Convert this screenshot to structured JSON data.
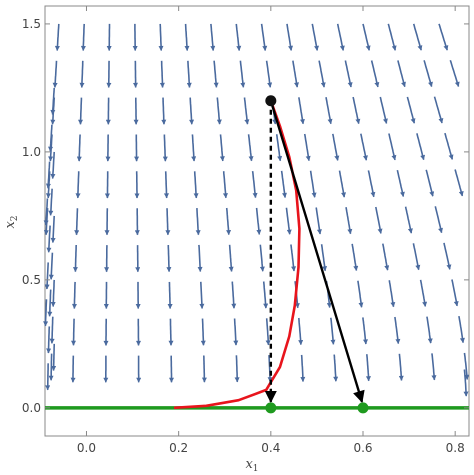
{
  "chart_data": {
    "type": "stream_plot",
    "xlim": [
      -0.09,
      0.83
    ],
    "ylim": [
      -0.11,
      1.57
    ],
    "x_ticks": [
      0.0,
      0.2,
      0.4,
      0.6,
      0.8
    ],
    "y_ticks": [
      0.0,
      0.5,
      1.0,
      1.5
    ],
    "x_tick_labels": [
      "0.0",
      "0.2",
      "0.4",
      "0.6",
      "0.8"
    ],
    "y_tick_labels": [
      "0.0",
      "0.5",
      "1.0",
      "1.5"
    ],
    "xlabel": {
      "base": "x",
      "sub": "1"
    },
    "ylabel": {
      "base": "x",
      "sub": "2"
    },
    "colors": {
      "stream": "#4a6a9e",
      "trajectory": "#e8141c",
      "equilibrium_line": "#1f9a1f",
      "arrows": "#000000",
      "frame": "#888888"
    },
    "equilibrium_line_y": 0.0,
    "start_point": {
      "x": 0.4,
      "y": 1.2
    },
    "end_points": [
      {
        "x": 0.4,
        "y": 0.0
      },
      {
        "x": 0.6,
        "y": 0.0
      }
    ],
    "dashed_arrow": {
      "from": [
        0.4,
        1.2
      ],
      "to": [
        0.4,
        0.0
      ]
    },
    "solid_arrow": {
      "from": [
        0.4,
        1.2
      ],
      "to": [
        0.6,
        0.0
      ]
    },
    "red_trajectory": [
      [
        0.4,
        1.2
      ],
      [
        0.42,
        1.1
      ],
      [
        0.44,
        0.98
      ],
      [
        0.455,
        0.85
      ],
      [
        0.462,
        0.7
      ],
      [
        0.46,
        0.55
      ],
      [
        0.452,
        0.4
      ],
      [
        0.44,
        0.28
      ],
      [
        0.42,
        0.16
      ],
      [
        0.39,
        0.07
      ],
      [
        0.33,
        0.03
      ],
      [
        0.26,
        0.008
      ],
      [
        0.19,
        0.0
      ]
    ]
  }
}
